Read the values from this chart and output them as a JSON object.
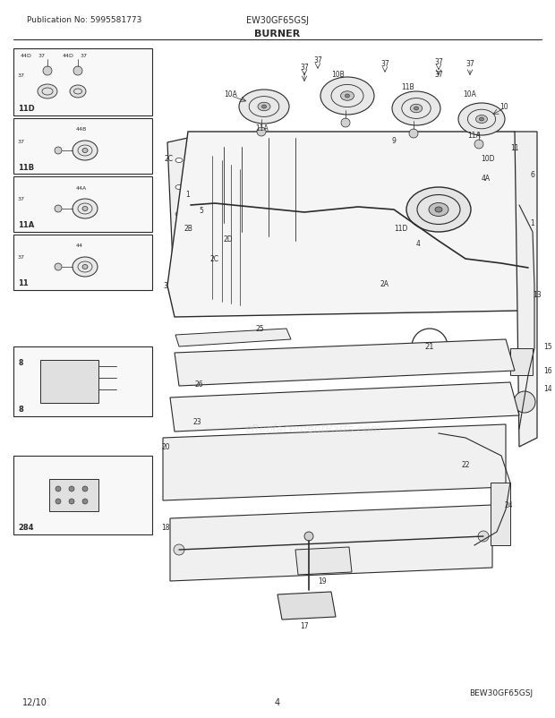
{
  "pub_no": "Publication No: 5995581773",
  "model": "EW30GF65GSJ",
  "section": "BURNER",
  "date": "12/10",
  "page": "4",
  "ref_code": "BEW30GF65GSJ",
  "bg_color": "#ffffff",
  "line_color": "#2a2a2a",
  "watermark": "eReplacementParts.com"
}
